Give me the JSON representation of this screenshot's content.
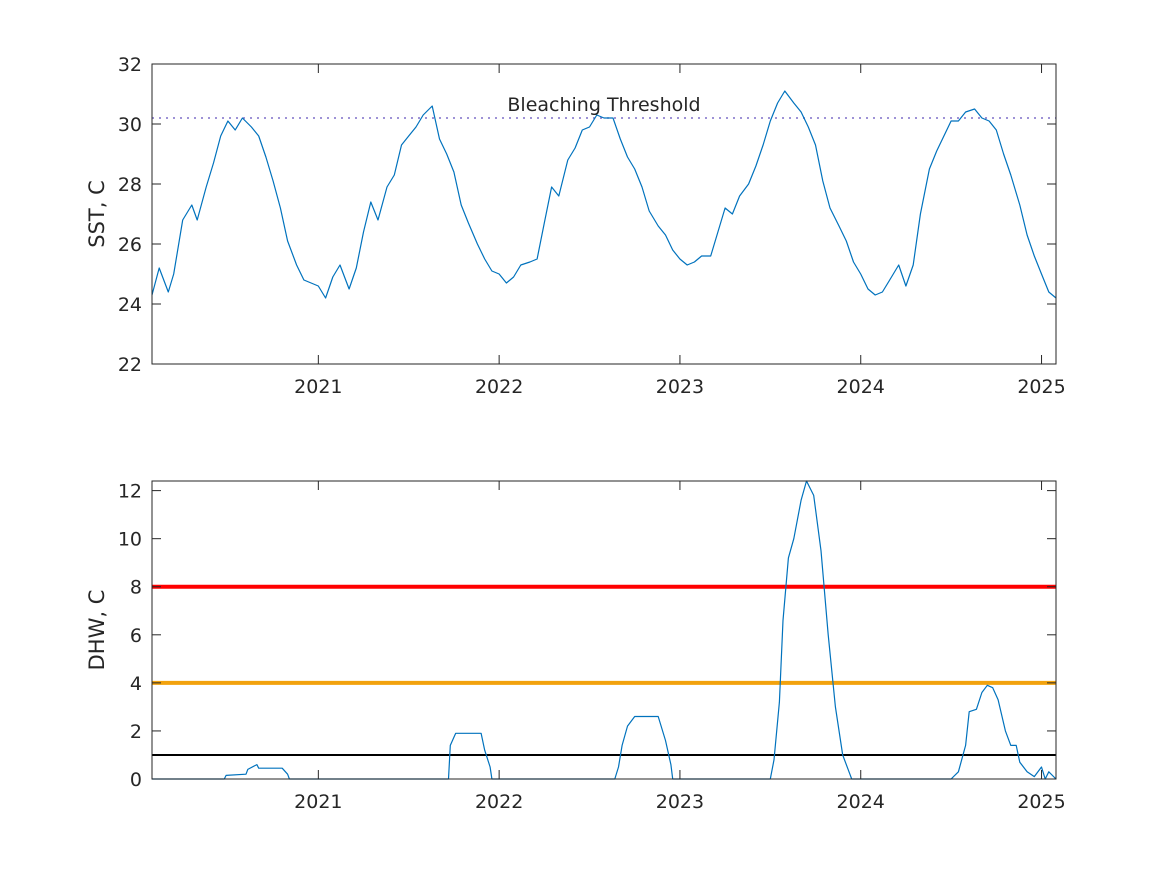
{
  "chart_data": [
    {
      "type": "line",
      "ylabel": "SST, C",
      "xlabel": "",
      "title": "",
      "xlim": [
        2020.08,
        2025.08
      ],
      "ylim": [
        22,
        32
      ],
      "xticks": [
        2021,
        2022,
        2023,
        2024,
        2025
      ],
      "xtick_labels": [
        "2021",
        "2022",
        "2023",
        "2024",
        "2025"
      ],
      "yticks": [
        22,
        24,
        26,
        28,
        30,
        32
      ],
      "ytick_labels": [
        "22",
        "24",
        "26",
        "28",
        "30",
        "32"
      ],
      "grid": false,
      "series": [
        {
          "color": "#0072bd",
          "x": [
            2020.08,
            2020.12,
            2020.17,
            2020.2,
            2020.25,
            2020.3,
            2020.33,
            2020.38,
            2020.42,
            2020.46,
            2020.5,
            2020.54,
            2020.58,
            2020.63,
            2020.67,
            2020.71,
            2020.75,
            2020.79,
            2020.83,
            2020.88,
            2020.92,
            2020.96,
            2021.0,
            2021.04,
            2021.08,
            2021.12,
            2021.17,
            2021.21,
            2021.25,
            2021.29,
            2021.33,
            2021.38,
            2021.42,
            2021.46,
            2021.5,
            2021.54,
            2021.58,
            2021.63,
            2021.67,
            2021.71,
            2021.75,
            2021.79,
            2021.83,
            2021.88,
            2021.92,
            2021.96,
            2022.0,
            2022.04,
            2022.08,
            2022.12,
            2022.17,
            2022.21,
            2022.25,
            2022.29,
            2022.33,
            2022.38,
            2022.42,
            2022.46,
            2022.5,
            2022.54,
            2022.58,
            2022.63,
            2022.67,
            2022.71,
            2022.75,
            2022.79,
            2022.83,
            2022.88,
            2022.92,
            2022.96,
            2023.0,
            2023.04,
            2023.08,
            2023.12,
            2023.17,
            2023.21,
            2023.25,
            2023.29,
            2023.33,
            2023.38,
            2023.42,
            2023.46,
            2023.5,
            2023.54,
            2023.58,
            2023.63,
            2023.67,
            2023.71,
            2023.75,
            2023.79,
            2023.83,
            2023.88,
            2023.92,
            2023.96,
            2024.0,
            2024.04,
            2024.08,
            2024.12,
            2024.17,
            2024.21,
            2024.25,
            2024.29,
            2024.33,
            2024.38,
            2024.42,
            2024.46,
            2024.5,
            2024.54,
            2024.58,
            2024.63,
            2024.67,
            2024.71,
            2024.75,
            2024.79,
            2024.83,
            2024.88,
            2024.92,
            2024.96,
            2025.0,
            2025.04,
            2025.08
          ],
          "values": [
            24.3,
            25.2,
            24.4,
            25.0,
            26.8,
            27.3,
            26.8,
            27.9,
            28.7,
            29.6,
            30.1,
            29.8,
            30.2,
            29.9,
            29.6,
            28.9,
            28.1,
            27.2,
            26.1,
            25.3,
            24.8,
            24.7,
            24.6,
            24.2,
            24.9,
            25.3,
            24.5,
            25.2,
            26.4,
            27.4,
            26.8,
            27.9,
            28.3,
            29.3,
            29.6,
            29.9,
            30.3,
            30.6,
            29.5,
            29.0,
            28.4,
            27.3,
            26.7,
            26.0,
            25.5,
            25.1,
            25.0,
            24.7,
            24.9,
            25.3,
            25.4,
            25.5,
            26.7,
            27.9,
            27.6,
            28.8,
            29.2,
            29.8,
            29.9,
            30.3,
            30.2,
            30.2,
            29.5,
            28.9,
            28.5,
            27.9,
            27.1,
            26.6,
            26.3,
            25.8,
            25.5,
            25.3,
            25.4,
            25.6,
            25.6,
            26.4,
            27.2,
            27.0,
            27.6,
            28.0,
            28.6,
            29.3,
            30.1,
            30.7,
            31.1,
            30.7,
            30.4,
            29.9,
            29.3,
            28.1,
            27.2,
            26.6,
            26.1,
            25.4,
            25.0,
            24.5,
            24.3,
            24.4,
            24.9,
            25.3,
            24.6,
            25.3,
            27.0,
            28.5,
            29.1,
            29.6,
            30.1,
            30.1,
            30.4,
            30.5,
            30.2,
            30.1,
            29.8,
            29.0,
            28.3,
            27.3,
            26.3,
            25.6,
            25.0,
            24.4,
            24.2
          ]
        }
      ],
      "reference_lines": [
        {
          "y": 30.2,
          "color": "#7e6fc9",
          "style": "dotted",
          "label": "Bleaching Threshold"
        }
      ]
    },
    {
      "type": "line",
      "ylabel": "DHW, C",
      "xlabel": "",
      "title": "",
      "xlim": [
        2020.08,
        2025.08
      ],
      "ylim": [
        0,
        12.4
      ],
      "xticks": [
        2021,
        2022,
        2023,
        2024,
        2025
      ],
      "xtick_labels": [
        "2021",
        "2022",
        "2023",
        "2024",
        "2025"
      ],
      "yticks": [
        0,
        2,
        4,
        6,
        8,
        10,
        12
      ],
      "ytick_labels": [
        "0",
        "2",
        "4",
        "6",
        "8",
        "10",
        "12"
      ],
      "grid": false,
      "series": [
        {
          "color": "#0072bd",
          "x": [
            2020.08,
            2020.48,
            2020.49,
            2020.6,
            2020.61,
            2020.66,
            2020.67,
            2020.8,
            2020.83,
            2020.84,
            2021.72,
            2021.73,
            2021.76,
            2021.9,
            2021.92,
            2021.95,
            2021.96,
            2022.64,
            2022.66,
            2022.68,
            2022.71,
            2022.75,
            2022.88,
            2022.92,
            2022.95,
            2022.96,
            2023.5,
            2023.52,
            2023.55,
            2023.57,
            2023.6,
            2023.63,
            2023.67,
            2023.7,
            2023.74,
            2023.78,
            2023.82,
            2023.86,
            2023.9,
            2023.94,
            2023.95,
            2024.5,
            2024.54,
            2024.58,
            2024.6,
            2024.64,
            2024.67,
            2024.7,
            2024.73,
            2024.76,
            2024.8,
            2024.83,
            2024.86,
            2024.88,
            2024.92,
            2024.96,
            2025.0,
            2025.02,
            2025.04,
            2025.08
          ],
          "values": [
            0,
            0,
            0.15,
            0.2,
            0.4,
            0.6,
            0.45,
            0.45,
            0.2,
            0,
            0,
            1.4,
            1.9,
            1.9,
            1.2,
            0.5,
            0,
            0,
            0.5,
            1.4,
            2.2,
            2.6,
            2.6,
            1.6,
            0.6,
            0,
            0,
            0.8,
            3.2,
            6.6,
            9.2,
            10.0,
            11.6,
            12.4,
            11.8,
            9.5,
            6.0,
            3.0,
            1.0,
            0.2,
            0,
            0,
            0.3,
            1.4,
            2.8,
            2.9,
            3.6,
            3.9,
            3.8,
            3.3,
            2.0,
            1.4,
            1.4,
            0.7,
            0.3,
            0.1,
            0.5,
            0,
            0.3,
            0
          ]
        }
      ],
      "reference_lines": [
        {
          "y": 8,
          "color": "#ff0000",
          "style": "solid"
        },
        {
          "y": 4,
          "color": "#f2a20d",
          "style": "solid"
        },
        {
          "y": 1,
          "color": "#000000",
          "style": "solid"
        }
      ]
    }
  ]
}
